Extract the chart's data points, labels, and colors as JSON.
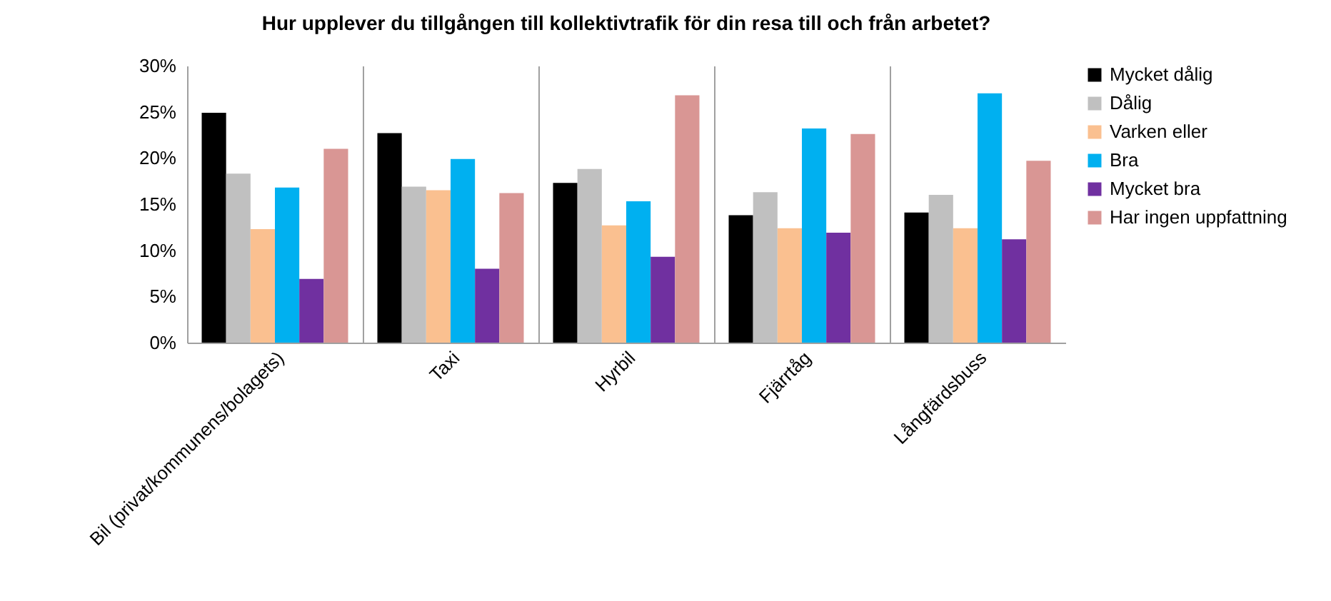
{
  "chart_data": {
    "type": "bar",
    "title": "Hur upplever du tillgången till kollektivtrafik för din resa till och från arbetet?",
    "categories": [
      "Bil (privat/kommunens/bolagets)",
      "Taxi",
      "Hyrbil",
      "Fjärrtåg",
      "Långfärdsbuss"
    ],
    "series": [
      {
        "name": "Mycket dålig",
        "color": "#000000",
        "values": [
          24.9,
          22.7,
          17.3,
          13.8,
          14.1
        ]
      },
      {
        "name": "Dålig",
        "color": "#c0c0c0",
        "values": [
          18.3,
          16.9,
          18.8,
          16.3,
          16.0
        ]
      },
      {
        "name": "Varken eller",
        "color": "#fac090",
        "values": [
          12.3,
          16.5,
          12.7,
          12.4,
          12.4
        ]
      },
      {
        "name": "Bra",
        "color": "#00b0f0",
        "values": [
          16.8,
          19.9,
          15.3,
          23.2,
          27.0
        ]
      },
      {
        "name": "Mycket bra",
        "color": "#7030a0",
        "values": [
          6.9,
          8.0,
          9.3,
          11.9,
          11.2
        ]
      },
      {
        "name": "Har ingen uppfattning",
        "color": "#d99694",
        "values": [
          21.0,
          16.2,
          26.8,
          22.6,
          19.7
        ]
      }
    ],
    "ylim": [
      0,
      30
    ],
    "yticks": [
      {
        "value": 0,
        "label": "0%"
      },
      {
        "value": 5,
        "label": "5%"
      },
      {
        "value": 10,
        "label": "10%"
      },
      {
        "value": 15,
        "label": "15%"
      },
      {
        "value": 20,
        "label": "20%"
      },
      {
        "value": 25,
        "label": "25%"
      },
      {
        "value": 30,
        "label": "30%"
      }
    ],
    "grid": "x",
    "legend": "right"
  }
}
